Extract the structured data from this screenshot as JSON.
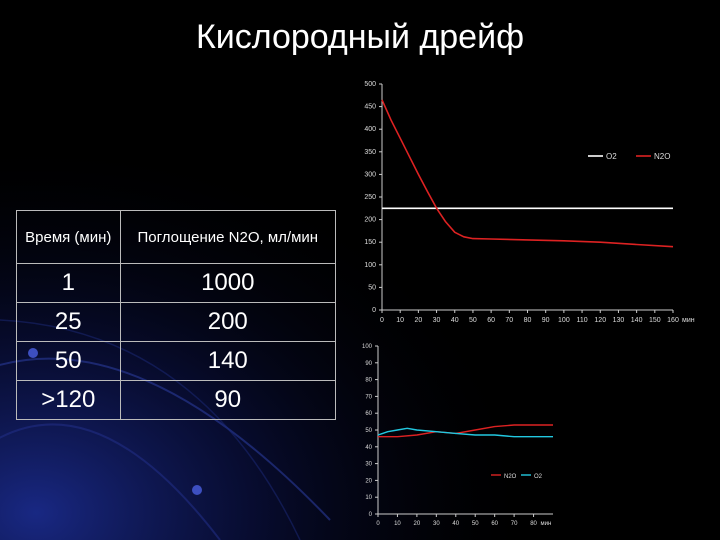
{
  "title": "Кислородный дрейф",
  "table": {
    "headers": [
      "Время (мин)",
      "Поглощение N2O, мл/мин"
    ],
    "rows": [
      [
        "1",
        "1000"
      ],
      [
        "25",
        "200"
      ],
      [
        "50",
        "140"
      ],
      [
        ">120",
        "90"
      ]
    ]
  },
  "colors": {
    "o2": "#ffffff",
    "n2o": "#dd2222",
    "o2_lower": "#22c8e0",
    "background": "#000000"
  },
  "chart_data": [
    {
      "type": "line",
      "x_unit_label": "мин",
      "xlim": [
        0,
        160
      ],
      "ylim": [
        0,
        500
      ],
      "x_ticks": [
        "0",
        "10",
        "20",
        "30",
        "40",
        "50",
        "60",
        "70",
        "80",
        "90",
        "100",
        "110",
        "120",
        "130",
        "140",
        "150",
        "160"
      ],
      "y_ticks": [
        "0",
        "50",
        "100",
        "150",
        "200",
        "250",
        "300",
        "350",
        "400",
        "450",
        "500"
      ],
      "grid": false,
      "legend_position": "top-right",
      "series": [
        {
          "name": "O2",
          "color": "#ffffff",
          "x": [
            0,
            160
          ],
          "y": [
            225,
            225
          ]
        },
        {
          "name": "N2O",
          "color": "#dd2222",
          "x": [
            0,
            5,
            10,
            15,
            20,
            25,
            30,
            35,
            40,
            45,
            50,
            60,
            80,
            100,
            120,
            140,
            160
          ],
          "y": [
            465,
            420,
            380,
            340,
            300,
            262,
            225,
            195,
            172,
            162,
            158,
            157,
            155,
            153,
            150,
            145,
            140
          ]
        }
      ]
    },
    {
      "type": "line",
      "x_unit_label": "мин",
      "xlim": [
        0,
        90
      ],
      "ylim": [
        0,
        100
      ],
      "x_ticks": [
        "0",
        "10",
        "20",
        "30",
        "40",
        "50",
        "60",
        "70",
        "80"
      ],
      "y_ticks": [
        "0",
        "10",
        "20",
        "30",
        "40",
        "50",
        "60",
        "70",
        "80",
        "90",
        "100"
      ],
      "grid": false,
      "legend_position": "right",
      "series": [
        {
          "name": "N2O",
          "color": "#dd2222",
          "x": [
            0,
            10,
            20,
            30,
            40,
            50,
            60,
            70,
            80,
            90
          ],
          "y": [
            46,
            46,
            47,
            49,
            48,
            50,
            52,
            53,
            53,
            53
          ]
        },
        {
          "name": "O2",
          "color": "#22c8e0",
          "x": [
            0,
            5,
            10,
            15,
            20,
            30,
            40,
            50,
            60,
            70,
            80,
            90
          ],
          "y": [
            47,
            49,
            50,
            51,
            50,
            49,
            48,
            47,
            47,
            46,
            46,
            46
          ]
        }
      ]
    }
  ]
}
